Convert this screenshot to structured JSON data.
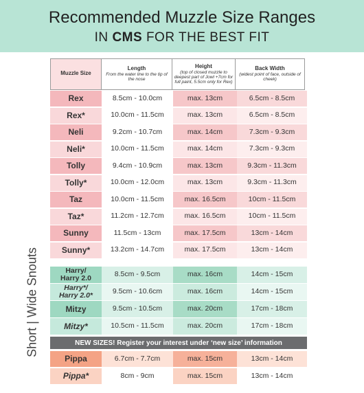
{
  "header": {
    "title": "Recommended Muzzle Size Ranges",
    "subtitle": {
      "prefix": "IN",
      "emphasis": "CMS",
      "suffix": "FOR THE BEST FIT"
    }
  },
  "table": {
    "columns": [
      {
        "title": "Muzzle Size"
      },
      {
        "title": "Length",
        "note": "From the water line to the tip of the nose"
      },
      {
        "title": "Height",
        "note": "(top of closed muzzle to deepest part of Jowl +7cm for full paint, 5.5cm only for Rex)"
      },
      {
        "title": "Back Width",
        "note": "(widest point of face, outside of cheek)"
      }
    ],
    "rows": [
      [
        "Rex",
        "8.5cm - 10.0cm",
        "max. 13cm",
        "6.5cm - 8.5cm"
      ],
      [
        "Rex*",
        "10.0cm - 11.5cm",
        "max. 13cm",
        "6.5cm - 8.5cm"
      ],
      [
        "Neli",
        "9.2cm - 10.7cm",
        "max. 14cm",
        "7.3cm - 9.3cm"
      ],
      [
        "Neli*",
        "10.0cm - 11.5cm",
        "max. 14cm",
        "7.3cm - 9.3cm"
      ],
      [
        "Tolly",
        "9.4cm - 10.9cm",
        "max. 13cm",
        "9.3cm - 11.3cm"
      ],
      [
        "Tolly*",
        "10.0cm - 12.0cm",
        "max. 13cm",
        "9.3cm - 11.3cm"
      ],
      [
        "Taz",
        "10.0cm - 11.5cm",
        "max. 16.5cm",
        "10cm - 11.5cm"
      ],
      [
        "Taz*",
        "11.2cm - 12.7cm",
        "max. 16.5cm",
        "10cm - 11.5cm"
      ],
      [
        "Sunny",
        "11.5cm - 13cm",
        "max. 17.5cm",
        "13cm - 14cm"
      ],
      [
        "Sunny*",
        "13.2cm - 14.7cm",
        "max. 17.5cm",
        "13cm - 14cm"
      ]
    ],
    "short_wide_label": "Short | Wide Snouts",
    "short_wide_rows": [
      [
        "Harry/\nHarry 2.0",
        "8.5cm - 9.5cm",
        "max. 16cm",
        "14cm - 15cm"
      ],
      [
        "Harry*/\nHarry 2.0*",
        "9.5cm - 10.6cm",
        "max. 16cm",
        "14cm - 15cm"
      ],
      [
        "Mitzy",
        "9.5cm - 10.5cm",
        "max. 20cm",
        "17cm - 18cm"
      ],
      [
        "Mitzy*",
        "10.5cm - 11.5cm",
        "max. 20cm",
        "17cm - 18cm"
      ]
    ],
    "banner": "NEW SIZES! Register your interest under ‘new size’ information",
    "new_rows": [
      [
        "Pippa",
        "6.7cm - 7.7cm",
        "max. 15cm",
        "13cm - 14cm"
      ],
      [
        "Pippa*",
        "8cm - 9cm",
        "max. 15cm",
        "13cm - 14cm"
      ]
    ]
  }
}
